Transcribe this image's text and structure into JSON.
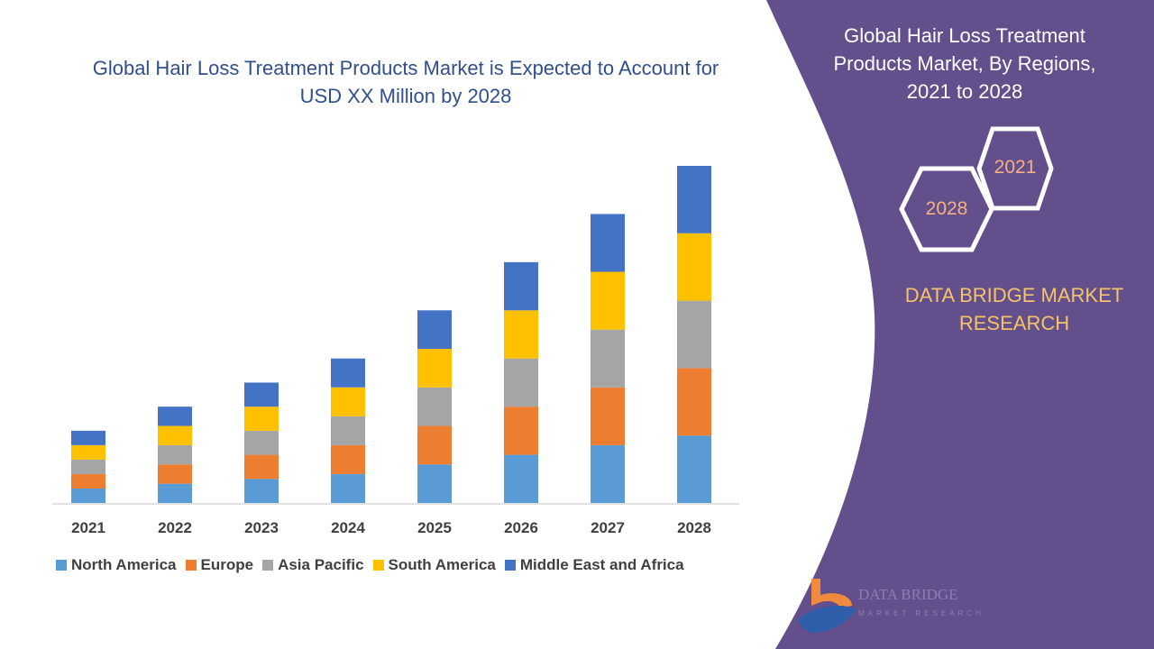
{
  "chart_data": {
    "type": "bar",
    "stacked": true,
    "title": "Global Hair Loss Treatment Products Market is Expected to Account for USD XX Million by 2028",
    "categories": [
      "2021",
      "2022",
      "2023",
      "2024",
      "2025",
      "2026",
      "2027",
      "2028"
    ],
    "series": [
      {
        "name": "North America",
        "color": "#5b9bd5",
        "values": [
          3,
          4,
          5,
          6,
          8,
          10,
          12,
          14
        ]
      },
      {
        "name": "Europe",
        "color": "#ed7d31",
        "values": [
          3,
          4,
          5,
          6,
          8,
          10,
          12,
          14
        ]
      },
      {
        "name": "Asia Pacific",
        "color": "#a5a5a5",
        "values": [
          3,
          4,
          5,
          6,
          8,
          10,
          12,
          14
        ]
      },
      {
        "name": "South America",
        "color": "#ffc000",
        "values": [
          3,
          4,
          5,
          6,
          8,
          10,
          12,
          14
        ]
      },
      {
        "name": "Middle East and Africa",
        "color": "#4472c4",
        "values": [
          3,
          4,
          5,
          6,
          8,
          10,
          12,
          14
        ]
      }
    ],
    "ylim": [
      0,
      70
    ],
    "y_axis_shown": false,
    "grid": false,
    "legend_position": "bottom"
  },
  "panel": {
    "title": "Global Hair Loss Treatment Products Market, By Regions, 2021 to 2028",
    "hex_start": "2021",
    "hex_end": "2028",
    "brand": "DATA BRIDGE MARKET RESEARCH",
    "background": "#634f8c"
  },
  "logo": {
    "line1": "DATA BRIDGE",
    "line2": "MARKET RESEARCH"
  }
}
